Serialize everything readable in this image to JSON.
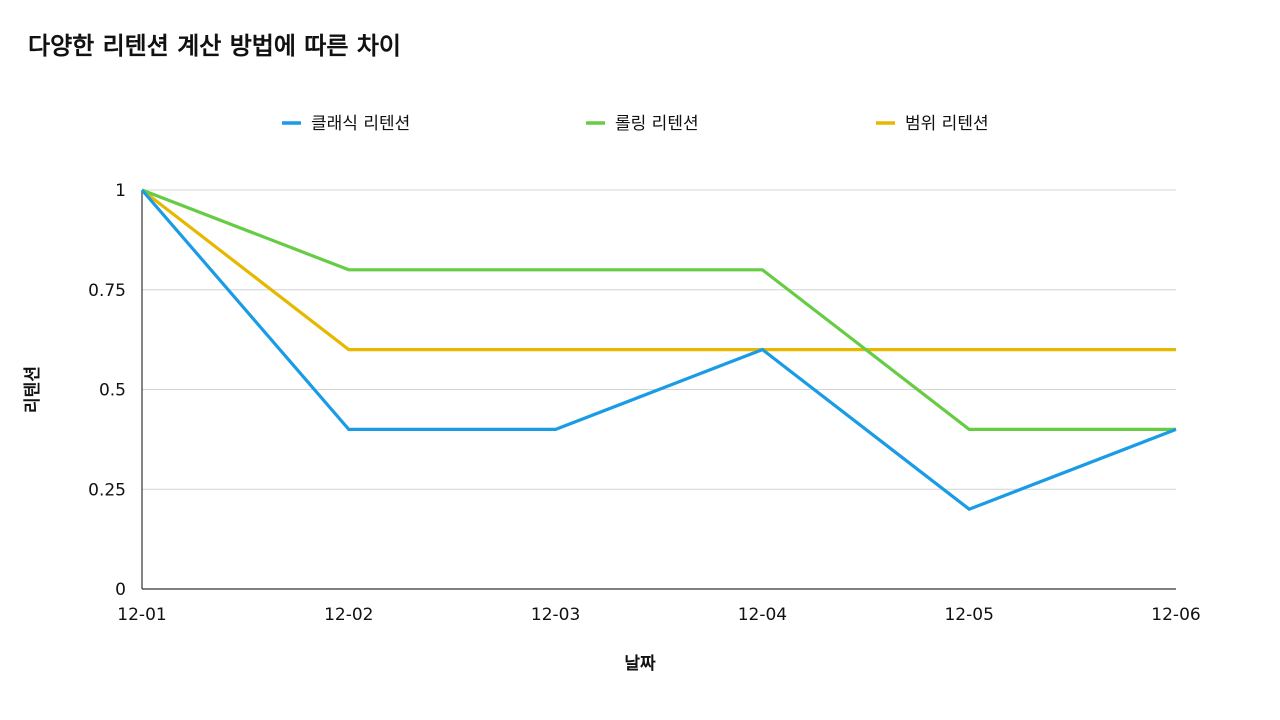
{
  "chart_data": {
    "type": "line",
    "title": "다양한 리텐션 계산 방법에 따른 차이",
    "xlabel": "날짜",
    "ylabel": "리텐션",
    "categories": [
      "12-01",
      "12-02",
      "12-03",
      "12-04",
      "12-05",
      "12-06"
    ],
    "ylim": [
      0,
      1
    ],
    "yticks": [
      {
        "value": 0,
        "label": "0"
      },
      {
        "value": 0.25,
        "label": "0.25"
      },
      {
        "value": 0.5,
        "label": "0.5"
      },
      {
        "value": 0.75,
        "label": "0.75"
      },
      {
        "value": 1,
        "label": "1"
      }
    ],
    "grid": true,
    "legend_position": "top",
    "series": [
      {
        "name": "클래식 리텐션",
        "color": "#1a9be6",
        "values": [
          1,
          0.4,
          0.4,
          0.6,
          0.2,
          0.4
        ]
      },
      {
        "name": "롤링 리텐션",
        "color": "#66cc44",
        "values": [
          1,
          0.8,
          0.8,
          0.8,
          0.4,
          0.4
        ]
      },
      {
        "name": "범위 리텐션",
        "color": "#e6b800",
        "values": [
          1,
          0.6,
          0.6,
          0.6,
          0.6,
          0.6
        ]
      }
    ]
  }
}
